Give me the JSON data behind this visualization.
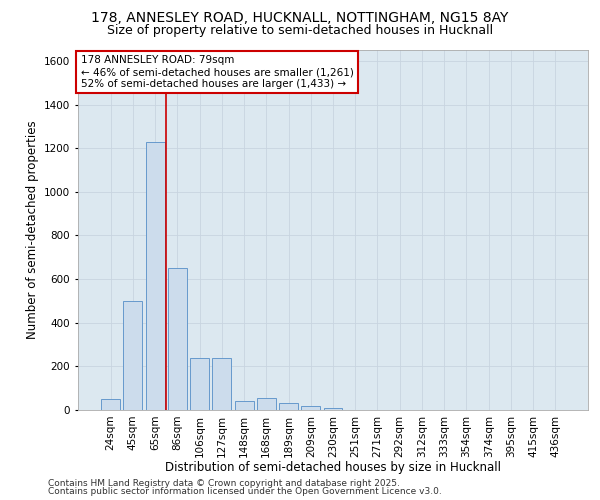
{
  "title_line1": "178, ANNESLEY ROAD, HUCKNALL, NOTTINGHAM, NG15 8AY",
  "title_line2": "Size of property relative to semi-detached houses in Hucknall",
  "xlabel": "Distribution of semi-detached houses by size in Hucknall",
  "ylabel": "Number of semi-detached properties",
  "categories": [
    "24sqm",
    "45sqm",
    "65sqm",
    "86sqm",
    "106sqm",
    "127sqm",
    "148sqm",
    "168sqm",
    "189sqm",
    "209sqm",
    "230sqm",
    "251sqm",
    "271sqm",
    "292sqm",
    "312sqm",
    "333sqm",
    "354sqm",
    "374sqm",
    "395sqm",
    "415sqm",
    "436sqm"
  ],
  "values": [
    50,
    500,
    1230,
    650,
    240,
    240,
    40,
    55,
    30,
    20,
    8,
    0,
    0,
    0,
    0,
    0,
    0,
    0,
    0,
    0,
    0
  ],
  "ylim": [
    0,
    1650
  ],
  "yticks": [
    0,
    200,
    400,
    600,
    800,
    1000,
    1200,
    1400,
    1600
  ],
  "bar_color": "#ccdcec",
  "bar_edge_color": "#6699cc",
  "grid_color": "#c8d4e0",
  "bg_color": "#dce8f0",
  "annotation_text": "178 ANNESLEY ROAD: 79sqm\n← 46% of semi-detached houses are smaller (1,261)\n52% of semi-detached houses are larger (1,433) →",
  "vline_x_index": 2.5,
  "vline_color": "#cc0000",
  "annotation_box_color": "#ffffff",
  "annotation_box_edge": "#cc0000",
  "footer_line1": "Contains HM Land Registry data © Crown copyright and database right 2025.",
  "footer_line2": "Contains public sector information licensed under the Open Government Licence v3.0.",
  "title_fontsize": 10,
  "subtitle_fontsize": 9,
  "tick_fontsize": 7.5,
  "label_fontsize": 8.5,
  "annotation_fontsize": 7.5,
  "footer_fontsize": 6.5
}
